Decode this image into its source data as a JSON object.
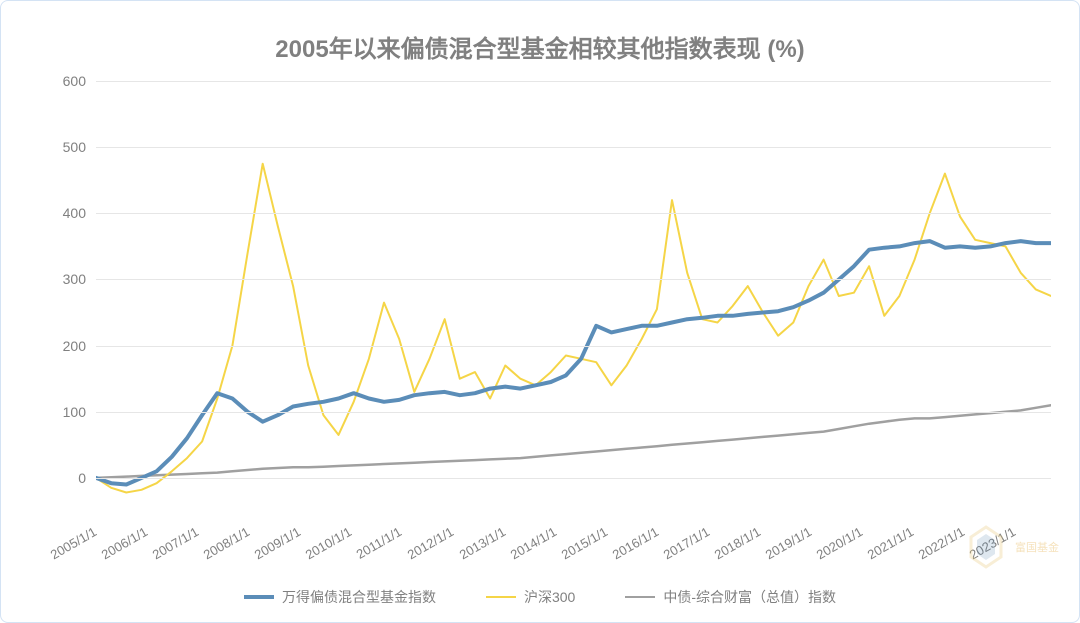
{
  "chart": {
    "type": "line",
    "title": "2005年以来偏债混合型基金相较其他指数表现 (%)",
    "title_fontsize": 24,
    "title_color": "#808080",
    "background_color": "#ffffff",
    "border_color": "#d4e3f4",
    "grid_color": "#e6e6e6",
    "axis_label_color": "#808080",
    "axis_label_fontsize": 14,
    "x_label_rotation": -30,
    "ylim": [
      -50,
      600
    ],
    "ytick_step": 100,
    "yticks": [
      0,
      100,
      200,
      300,
      400,
      500,
      600
    ],
    "x_categories": [
      "2005/1/1",
      "2006/1/1",
      "2007/1/1",
      "2008/1/1",
      "2009/1/1",
      "2010/1/1",
      "2011/1/1",
      "2012/1/1",
      "2013/1/1",
      "2014/1/1",
      "2015/1/1",
      "2016/1/1",
      "2017/1/1",
      "2018/1/1",
      "2019/1/1",
      "2020/1/1",
      "2021/1/1",
      "2022/1/1",
      "2023/1/1"
    ],
    "series": [
      {
        "name": "万得偏债混合型基金指数",
        "color": "#5b8db8",
        "line_width": 4,
        "values": [
          0,
          -8,
          -10,
          0,
          10,
          32,
          60,
          95,
          128,
          120,
          100,
          85,
          95,
          108,
          112,
          115,
          120,
          128,
          120,
          115,
          118,
          125,
          128,
          130,
          125,
          128,
          135,
          138,
          135,
          140,
          145,
          155,
          180,
          230,
          220,
          225,
          230,
          230,
          235,
          240,
          242,
          245,
          245,
          248,
          250,
          252,
          258,
          268,
          280,
          300,
          320,
          345,
          348,
          350,
          355,
          358,
          348,
          350,
          348,
          350,
          355,
          358,
          355,
          355
        ]
      },
      {
        "name": "沪深300",
        "color": "#f5d547",
        "line_width": 2,
        "values": [
          0,
          -15,
          -22,
          -18,
          -8,
          10,
          30,
          55,
          120,
          200,
          340,
          475,
          380,
          290,
          170,
          95,
          65,
          115,
          180,
          265,
          210,
          130,
          180,
          240,
          150,
          160,
          120,
          170,
          150,
          140,
          160,
          185,
          180,
          175,
          140,
          170,
          210,
          255,
          420,
          310,
          240,
          235,
          260,
          290,
          250,
          215,
          235,
          290,
          330,
          275,
          280,
          320,
          245,
          275,
          330,
          400,
          460,
          395,
          360,
          355,
          350,
          310,
          285,
          275
        ]
      },
      {
        "name": "中债-综合财富（总值）指数",
        "color": "#a0a0a0",
        "line_width": 2.5,
        "values": [
          0,
          1,
          2,
          3,
          4,
          5,
          6,
          7,
          8,
          10,
          12,
          14,
          15,
          16,
          16,
          17,
          18,
          19,
          20,
          21,
          22,
          23,
          24,
          25,
          26,
          27,
          28,
          29,
          30,
          32,
          34,
          36,
          38,
          40,
          42,
          44,
          46,
          48,
          50,
          52,
          54,
          56,
          58,
          60,
          62,
          64,
          66,
          68,
          70,
          74,
          78,
          82,
          85,
          88,
          90,
          90,
          92,
          94,
          96,
          98,
          100,
          102,
          106,
          110
        ]
      }
    ],
    "legend": {
      "position": "bottom",
      "fontsize": 14,
      "color": "#808080"
    },
    "watermark": {
      "text": "富国基金",
      "color": "#f0d090"
    }
  }
}
